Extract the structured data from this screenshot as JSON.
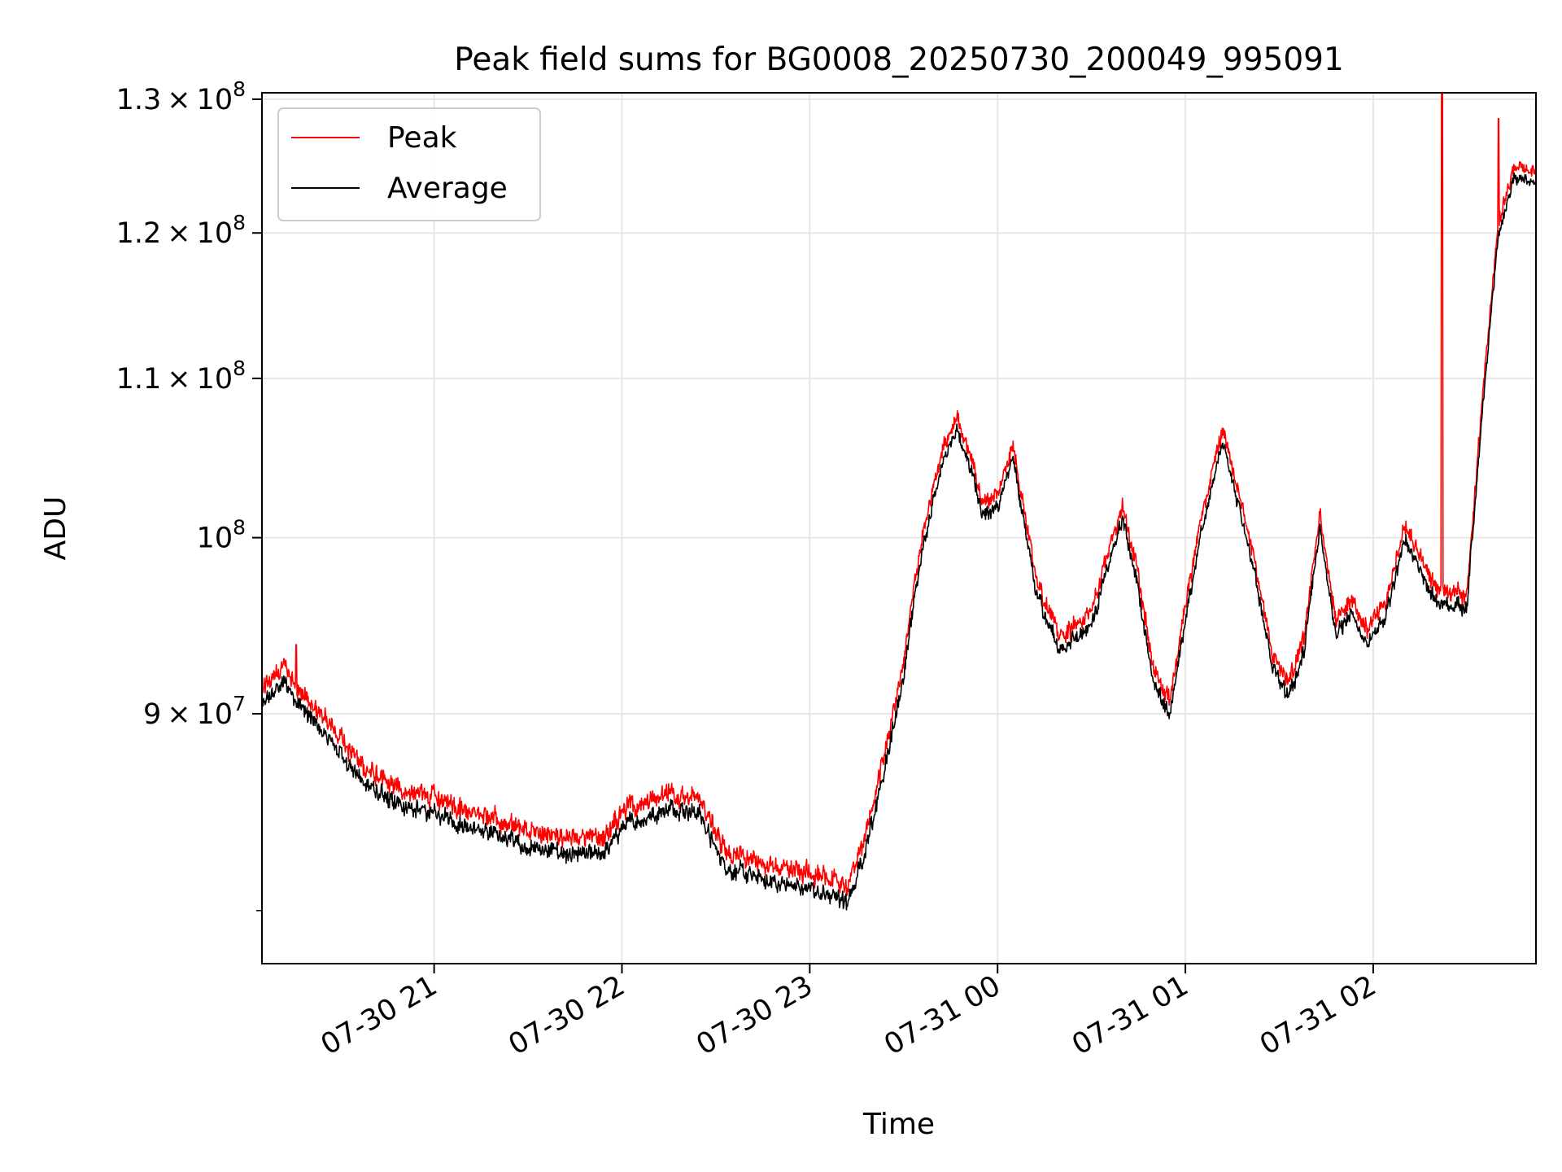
{
  "chart_data": {
    "type": "line",
    "title": "Peak field sums for BG0008_20250730_200049_995091",
    "xlabel": "Time",
    "ylabel": "ADU",
    "x_range": [
      "2025-07-30 20:05",
      "2025-07-31 02:52"
    ],
    "x_ticks": [
      {
        "t": "2025-07-30 21:00",
        "label": "07-30 21"
      },
      {
        "t": "2025-07-30 22:00",
        "label": "07-30 22"
      },
      {
        "t": "2025-07-30 23:00",
        "label": "07-30 23"
      },
      {
        "t": "2025-07-31 00:00",
        "label": "07-31 00"
      },
      {
        "t": "2025-07-31 01:00",
        "label": "07-31 01"
      },
      {
        "t": "2025-07-31 02:00",
        "label": "07-31 02"
      }
    ],
    "y_scale": "log",
    "ylim": [
      77500000,
      130500000
    ],
    "y_ticks": [
      {
        "v": 90000000,
        "mant": "9",
        "exp": "7"
      },
      {
        "v": 100000000,
        "mant": "",
        "exp": "8"
      },
      {
        "v": 110000000,
        "mant": "1.1",
        "exp": "8"
      },
      {
        "v": 120000000,
        "mant": "1.2",
        "exp": "8"
      },
      {
        "v": 130000000,
        "mant": "1.3",
        "exp": "8"
      }
    ],
    "grid": true,
    "legend_position": "top-left",
    "series": [
      {
        "name": "Peak",
        "color": "#ff0000",
        "offset": 600000,
        "noise": 900000,
        "x": [
          "2025-07-30 20:05",
          "2025-07-30 20:12",
          "2025-07-30 20:17",
          "2025-07-30 20:22",
          "2025-07-30 20:30",
          "2025-07-30 20:37",
          "2025-07-30 20:45",
          "2025-07-30 21:00",
          "2025-07-30 21:15",
          "2025-07-30 21:30",
          "2025-07-30 21:45",
          "2025-07-30 21:55",
          "2025-07-30 22:00",
          "2025-07-30 22:10",
          "2025-07-30 22:15",
          "2025-07-30 22:25",
          "2025-07-30 22:30",
          "2025-07-30 22:35",
          "2025-07-30 22:45",
          "2025-07-30 22:55",
          "2025-07-30 23:05",
          "2025-07-30 23:12",
          "2025-07-30 23:17",
          "2025-07-30 23:23",
          "2025-07-30 23:30",
          "2025-07-30 23:35",
          "2025-07-30 23:42",
          "2025-07-30 23:47",
          "2025-07-30 23:52",
          "2025-07-30 23:55",
          "2025-07-31 00:00",
          "2025-07-31 00:05",
          "2025-07-31 00:12",
          "2025-07-31 00:20",
          "2025-07-31 00:30",
          "2025-07-31 00:40",
          "2025-07-31 00:45",
          "2025-07-31 00:50",
          "2025-07-31 00:55",
          "2025-07-31 01:05",
          "2025-07-31 01:12",
          "2025-07-31 01:22",
          "2025-07-31 01:28",
          "2025-07-31 01:33",
          "2025-07-31 01:38",
          "2025-07-31 01:43",
          "2025-07-31 01:48",
          "2025-07-31 01:53",
          "2025-07-31 01:58",
          "2025-07-31 02:04",
          "2025-07-31 02:10",
          "2025-07-31 02:20",
          "2025-07-31 02:30",
          "2025-07-31 02:40",
          "2025-07-31 02:45",
          "2025-07-31 02:52"
        ],
        "y": [
          90500000,
          91800000,
          90500000,
          89500000,
          88000000,
          86500000,
          85500000,
          84800000,
          84000000,
          83200000,
          82700000,
          82900000,
          84200000,
          84800000,
          85200000,
          84800000,
          83000000,
          82000000,
          81500000,
          81200000,
          80900000,
          80400000,
          82500000,
          86500000,
          92000000,
          98500000,
          104500000,
          106600000,
          104000000,
          101400000,
          101800000,
          104900000,
          97000000,
          93500000,
          95000000,
          101200000,
          97000000,
          91500000,
          90000000,
          100500000,
          105900000,
          98000000,
          92500000,
          91000000,
          93500000,
          100800000,
          94500000,
          95500000,
          94000000,
          95300000,
          100000000,
          96200000,
          96000000,
          120000000,
          124000000,
          123800000
        ],
        "spikes": [
          {
            "t": "2025-07-30 20:16",
            "v": 93800000
          },
          {
            "t": "2025-07-31 02:22",
            "v": 130500000
          },
          {
            "t": "2025-07-31 02:40",
            "v": 128500000
          }
        ]
      },
      {
        "name": "Average",
        "color": "#000000",
        "offset": 0,
        "noise": 900000,
        "x": [
          "2025-07-30 20:05",
          "2025-07-30 20:12",
          "2025-07-30 20:17",
          "2025-07-30 20:22",
          "2025-07-30 20:30",
          "2025-07-30 20:37",
          "2025-07-30 20:45",
          "2025-07-30 21:00",
          "2025-07-30 21:15",
          "2025-07-30 21:30",
          "2025-07-30 21:45",
          "2025-07-30 21:55",
          "2025-07-30 22:00",
          "2025-07-30 22:10",
          "2025-07-30 22:15",
          "2025-07-30 22:25",
          "2025-07-30 22:30",
          "2025-07-30 22:35",
          "2025-07-30 22:45",
          "2025-07-30 22:55",
          "2025-07-30 23:05",
          "2025-07-30 23:12",
          "2025-07-30 23:17",
          "2025-07-30 23:23",
          "2025-07-30 23:30",
          "2025-07-30 23:35",
          "2025-07-30 23:42",
          "2025-07-30 23:47",
          "2025-07-30 23:52",
          "2025-07-30 23:55",
          "2025-07-31 00:00",
          "2025-07-31 00:05",
          "2025-07-31 00:12",
          "2025-07-31 00:20",
          "2025-07-31 00:30",
          "2025-07-31 00:40",
          "2025-07-31 00:45",
          "2025-07-31 00:50",
          "2025-07-31 00:55",
          "2025-07-31 01:05",
          "2025-07-31 01:12",
          "2025-07-31 01:22",
          "2025-07-31 01:28",
          "2025-07-31 01:33",
          "2025-07-31 01:38",
          "2025-07-31 01:43",
          "2025-07-31 01:48",
          "2025-07-31 01:53",
          "2025-07-31 01:58",
          "2025-07-31 02:04",
          "2025-07-31 02:10",
          "2025-07-31 02:20",
          "2025-07-31 02:30",
          "2025-07-31 02:40",
          "2025-07-31 02:45",
          "2025-07-31 02:52"
        ],
        "y": [
          90500000,
          91800000,
          90500000,
          89500000,
          88000000,
          86500000,
          85500000,
          84800000,
          84000000,
          83200000,
          82700000,
          82900000,
          84200000,
          84800000,
          85200000,
          84800000,
          83000000,
          82000000,
          81500000,
          81200000,
          80900000,
          80400000,
          82500000,
          86500000,
          92000000,
          98500000,
          104500000,
          106600000,
          104000000,
          101400000,
          101800000,
          104900000,
          97000000,
          93500000,
          95000000,
          101200000,
          97000000,
          91500000,
          90000000,
          100500000,
          105900000,
          98000000,
          92500000,
          91000000,
          93500000,
          100800000,
          94500000,
          95500000,
          94000000,
          95300000,
          100000000,
          96200000,
          96000000,
          120000000,
          124000000,
          123800000
        ],
        "spikes": []
      }
    ]
  }
}
